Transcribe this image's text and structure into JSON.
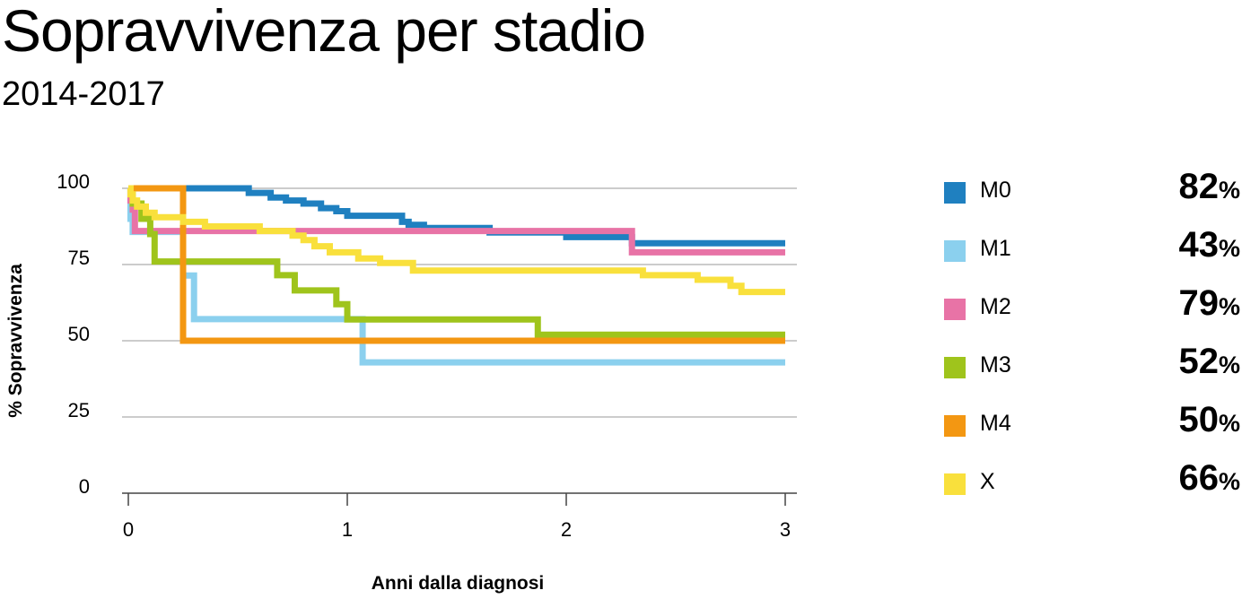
{
  "chart_data": {
    "type": "line",
    "title": "Sopravvivenza per stadio",
    "subtitle": "2014-2017",
    "xlabel": "Anni dalla diagnosi",
    "ylabel": "% Sopravvivenza",
    "xlim": [
      0,
      3
    ],
    "ylim": [
      0,
      100
    ],
    "x_ticks": [
      "0",
      "1",
      "2",
      "3"
    ],
    "y_ticks": [
      "0",
      "25",
      "50",
      "75",
      "100"
    ],
    "grid": "horizontal",
    "legend_position": "right",
    "series": [
      {
        "name": "M0",
        "color": "#1f80c0",
        "final_label": "82",
        "x": [
          0,
          0.54,
          0.55,
          0.65,
          0.72,
          0.8,
          0.88,
          0.95,
          1.0,
          1.25,
          1.28,
          1.35,
          1.65,
          2.0,
          2.3
        ],
        "y": [
          100,
          100,
          98.5,
          97,
          96,
          95,
          93.5,
          92.5,
          91,
          89,
          88,
          87,
          85.5,
          84,
          82
        ]
      },
      {
        "name": "M1",
        "color": "#8bd0ee",
        "final_label": "43",
        "x": [
          0,
          0.01,
          0.02,
          0.25,
          0.3,
          1.07
        ],
        "y": [
          100,
          90,
          85.7,
          71.4,
          57.1,
          42.9
        ]
      },
      {
        "name": "M2",
        "color": "#e873a6",
        "final_label": "79",
        "x": [
          0,
          0.01,
          0.02,
          0.03,
          2.3
        ],
        "y": [
          100,
          96,
          93,
          86,
          79
        ]
      },
      {
        "name": "M3",
        "color": "#9fc41c",
        "final_label": "52",
        "x": [
          0,
          0.02,
          0.06,
          0.1,
          0.12,
          0.68,
          0.76,
          0.95,
          1.0,
          1.87
        ],
        "y": [
          100,
          95,
          90,
          85,
          76,
          71.5,
          66.5,
          62,
          57,
          52
        ]
      },
      {
        "name": "M4",
        "color": "#f39712",
        "final_label": "50",
        "x": [
          0,
          0.25
        ],
        "y": [
          100,
          50
        ]
      },
      {
        "name": "X",
        "color": "#f9e03c",
        "final_label": "66",
        "x": [
          0,
          0.01,
          0.02,
          0.04,
          0.08,
          0.12,
          0.25,
          0.35,
          0.6,
          0.75,
          0.8,
          0.85,
          0.92,
          1.05,
          1.15,
          1.3,
          2.35,
          2.6,
          2.75,
          2.8
        ],
        "y": [
          100,
          98,
          96,
          94,
          92,
          90.5,
          89,
          87.5,
          86,
          84.5,
          83,
          81,
          79,
          77,
          75.5,
          73,
          71.5,
          70,
          68,
          66
        ]
      }
    ]
  },
  "legend": [
    {
      "label": "M0",
      "value": "82",
      "unit": "%",
      "color": "#1f80c0"
    },
    {
      "label": "M1",
      "value": "43",
      "unit": "%",
      "color": "#8bd0ee"
    },
    {
      "label": "M2",
      "value": "79",
      "unit": "%",
      "color": "#e873a6"
    },
    {
      "label": "M3",
      "value": "52",
      "unit": "%",
      "color": "#9fc41c"
    },
    {
      "label": "M4",
      "value": "50",
      "unit": "%",
      "color": "#f39712"
    },
    {
      "label": "X",
      "value": "66",
      "unit": "%",
      "color": "#f9e03c"
    }
  ]
}
